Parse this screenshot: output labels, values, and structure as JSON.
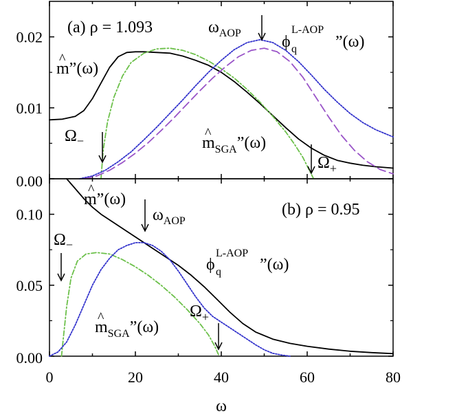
{
  "chart_data": [
    {
      "type": "line",
      "panel_label": "(a) ρ = 1.093",
      "xlim": [
        0,
        80
      ],
      "ylim": [
        0,
        0.025
      ],
      "x_ticks": [
        0,
        20,
        40,
        60,
        80
      ],
      "y_ticks": [
        0.0,
        0.01,
        0.02
      ],
      "y_tick_labels": [
        "0.00",
        "0.01",
        "0.02"
      ],
      "series": [
        {
          "key": "m",
          "color": "#000000",
          "dash": "",
          "points": [
            [
              0,
              0.0083
            ],
            [
              3,
              0.0084
            ],
            [
              6,
              0.0088
            ],
            [
              8,
              0.0096
            ],
            [
              10,
              0.0113
            ],
            [
              12,
              0.0135
            ],
            [
              14,
              0.0157
            ],
            [
              16,
              0.0172
            ],
            [
              18,
              0.0178
            ],
            [
              20,
              0.0179
            ],
            [
              22,
              0.0179
            ],
            [
              25,
              0.0178
            ],
            [
              28,
              0.0177
            ],
            [
              31,
              0.0173
            ],
            [
              34,
              0.0167
            ],
            [
              37,
              0.016
            ],
            [
              40,
              0.015
            ],
            [
              43,
              0.0137
            ],
            [
              46,
              0.0122
            ],
            [
              49,
              0.0106
            ],
            [
              52,
              0.0089
            ],
            [
              55,
              0.0072
            ],
            [
              58,
              0.0056
            ],
            [
              61,
              0.0043
            ],
            [
              64,
              0.0033
            ],
            [
              67,
              0.0026
            ],
            [
              70,
              0.0022
            ],
            [
              73,
              0.0019
            ],
            [
              76,
              0.0017
            ],
            [
              80,
              0.0015
            ]
          ]
        },
        {
          "key": "mSGA",
          "color": "#6cc04a",
          "dash": "7,3,2,3",
          "points": [
            [
              12,
              0
            ],
            [
              12.5,
              0.004
            ],
            [
              13.5,
              0.008
            ],
            [
              15,
              0.0115
            ],
            [
              17,
              0.0145
            ],
            [
              19,
              0.0164
            ],
            [
              22,
              0.0177
            ],
            [
              25,
              0.0183
            ],
            [
              28,
              0.0184
            ],
            [
              31,
              0.0181
            ],
            [
              34,
              0.0175
            ],
            [
              37,
              0.0166
            ],
            [
              40,
              0.0155
            ],
            [
              43,
              0.0142
            ],
            [
              46,
              0.0126
            ],
            [
              49,
              0.0108
            ],
            [
              52,
              0.0088
            ],
            [
              55,
              0.0066
            ],
            [
              57,
              0.0049
            ],
            [
              59,
              0.003
            ],
            [
              60.5,
              0.0012
            ],
            [
              61.5,
              0
            ]
          ]
        },
        {
          "key": "phi",
          "color": "#3333cc",
          "dash": "2,2",
          "points": [
            [
              7,
              0
            ],
            [
              10,
              0.0004
            ],
            [
              13,
              0.0012
            ],
            [
              16,
              0.0024
            ],
            [
              19,
              0.0038
            ],
            [
              22,
              0.0055
            ],
            [
              25,
              0.0073
            ],
            [
              28,
              0.0092
            ],
            [
              31,
              0.0111
            ],
            [
              34,
              0.0131
            ],
            [
              37,
              0.015
            ],
            [
              40,
              0.0167
            ],
            [
              43,
              0.0182
            ],
            [
              46,
              0.0192
            ],
            [
              49,
              0.0196
            ],
            [
              52,
              0.0192
            ],
            [
              55,
              0.0181
            ],
            [
              58,
              0.0165
            ],
            [
              61,
              0.0146
            ],
            [
              64,
              0.0126
            ],
            [
              67,
              0.0108
            ],
            [
              70,
              0.0092
            ],
            [
              73,
              0.0079
            ],
            [
              76,
              0.0069
            ],
            [
              80,
              0.0059
            ]
          ]
        },
        {
          "key": "sga_purple",
          "color": "#9a55c8",
          "dash": "12,6",
          "points": [
            [
              8,
              0
            ],
            [
              11,
              0.0004
            ],
            [
              14,
              0.0012
            ],
            [
              17,
              0.0023
            ],
            [
              20,
              0.0036
            ],
            [
              23,
              0.0051
            ],
            [
              26,
              0.0068
            ],
            [
              29,
              0.0086
            ],
            [
              32,
              0.0105
            ],
            [
              35,
              0.0124
            ],
            [
              38,
              0.0142
            ],
            [
              41,
              0.0158
            ],
            [
              44,
              0.0172
            ],
            [
              47,
              0.0181
            ],
            [
              50,
              0.0184
            ],
            [
              53,
              0.0179
            ],
            [
              56,
              0.0165
            ],
            [
              59,
              0.0143
            ],
            [
              62,
              0.0115
            ],
            [
              65,
              0.0087
            ],
            [
              68,
              0.0061
            ],
            [
              71,
              0.004
            ],
            [
              74,
              0.0024
            ],
            [
              77,
              0.0013
            ],
            [
              80,
              0.0007
            ]
          ]
        }
      ],
      "annotations": {
        "m_label": "m",
        "m_suffix": "”(ω)",
        "mSGA_label": "m",
        "mSGA_sub": "SGA",
        "mSGA_suffix": "”(ω)",
        "omega_aop_main": "ω",
        "omega_aop_sub": "AOP",
        "phi_main": "ϕ",
        "phi_sub": "q",
        "phi_sup": "L-AOP",
        "phi_suffix": "”(ω)",
        "omega_minus_main": "Ω",
        "omega_minus_sub": "−",
        "omega_plus_main": "Ω",
        "omega_plus_sub": "+"
      }
    },
    {
      "type": "line",
      "panel_label": "(b) ρ = 0.95",
      "xlim": [
        0,
        80
      ],
      "ylim": [
        0,
        0.125
      ],
      "x_ticks": [
        0,
        20,
        40,
        60,
        80
      ],
      "y_ticks": [
        0.0,
        0.05,
        0.1
      ],
      "y_tick_labels": [
        "0.00",
        "0.05",
        "0.10"
      ],
      "series": [
        {
          "key": "m",
          "color": "#000000",
          "dash": "",
          "points": [
            [
              4,
              0.125
            ],
            [
              6,
              0.118
            ],
            [
              8,
              0.111
            ],
            [
              10,
              0.105
            ],
            [
              12,
              0.1
            ],
            [
              15,
              0.094
            ],
            [
              18,
              0.088
            ],
            [
              21,
              0.082
            ],
            [
              24,
              0.076
            ],
            [
              27,
              0.07
            ],
            [
              30,
              0.064
            ],
            [
              33,
              0.057
            ],
            [
              36,
              0.049
            ],
            [
              39,
              0.04
            ],
            [
              42,
              0.031
            ],
            [
              45,
              0.023
            ],
            [
              48,
              0.017
            ],
            [
              52,
              0.012
            ],
            [
              56,
              0.009
            ],
            [
              60,
              0.007
            ],
            [
              65,
              0.005
            ],
            [
              70,
              0.0035
            ],
            [
              75,
              0.0025
            ],
            [
              80,
              0.0018
            ]
          ]
        },
        {
          "key": "mSGA",
          "color": "#6cc04a",
          "dash": "7,3,2,3",
          "points": [
            [
              2.8,
              0
            ],
            [
              3.2,
              0.012
            ],
            [
              4,
              0.035
            ],
            [
              5,
              0.055
            ],
            [
              6.5,
              0.067
            ],
            [
              8.5,
              0.072
            ],
            [
              11,
              0.073
            ],
            [
              14,
              0.072
            ],
            [
              17,
              0.068
            ],
            [
              20,
              0.063
            ],
            [
              23,
              0.057
            ],
            [
              26,
              0.05
            ],
            [
              29,
              0.042
            ],
            [
              32,
              0.033
            ],
            [
              35,
              0.023
            ],
            [
              37,
              0.015
            ],
            [
              38.5,
              0.007
            ],
            [
              39.5,
              0
            ]
          ]
        },
        {
          "key": "phi",
          "color": "#3333cc",
          "dash": "2,2",
          "points": [
            [
              0,
              0
            ],
            [
              2,
              0.003
            ],
            [
              4,
              0.01
            ],
            [
              6,
              0.022
            ],
            [
              8,
              0.036
            ],
            [
              10,
              0.05
            ],
            [
              12,
              0.061
            ],
            [
              14,
              0.069
            ],
            [
              16,
              0.075
            ],
            [
              18,
              0.078
            ],
            [
              20,
              0.08
            ],
            [
              22,
              0.08
            ],
            [
              24,
              0.078
            ],
            [
              26,
              0.074
            ],
            [
              28,
              0.068
            ],
            [
              30,
              0.06
            ],
            [
              32,
              0.051
            ],
            [
              34,
              0.042
            ],
            [
              36,
              0.034
            ],
            [
              38,
              0.028
            ],
            [
              40,
              0.024
            ],
            [
              42,
              0.02
            ],
            [
              44,
              0.016
            ],
            [
              46,
              0.012
            ],
            [
              48,
              0.008
            ],
            [
              50,
              0.0045
            ],
            [
              52,
              0.002
            ],
            [
              54,
              0.0008
            ],
            [
              56,
              0
            ]
          ]
        }
      ],
      "annotations": {
        "m_label": "m",
        "m_suffix": "”(ω)",
        "mSGA_label": "m",
        "mSGA_sub": "SGA",
        "mSGA_suffix": "”(ω)",
        "omega_aop_main": "ω",
        "omega_aop_sub": "AOP",
        "phi_main": "ϕ",
        "phi_sub": "q",
        "phi_sup": "L-AOP",
        "phi_suffix": "”(ω)",
        "omega_minus_main": "Ω",
        "omega_minus_sub": "−",
        "omega_plus_main": "Ω",
        "omega_plus_sub": "+"
      }
    }
  ],
  "xlabel": "ω",
  "x_tick_labels": [
    "0",
    "20",
    "40",
    "60",
    "80"
  ]
}
